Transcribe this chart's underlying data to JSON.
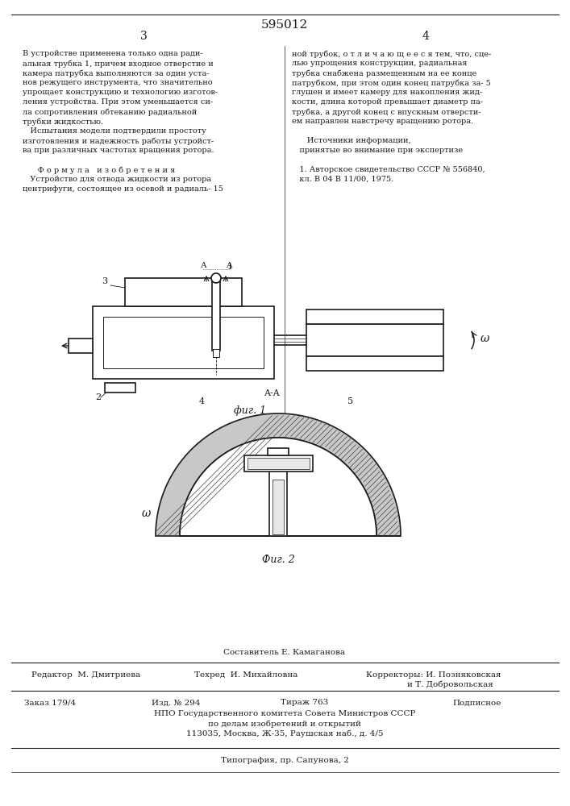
{
  "title": "595012",
  "page_numbers": [
    "3",
    "4"
  ],
  "fig1_caption": "фиг. 1",
  "fig2_caption": "Фиг. 2",
  "left_lines": [
    "В устройстве применена только одна ради-",
    "альная трубка 1, причем входное отверстие и",
    "камера патрубка выполняются за один уста-",
    "нов режущего инструмента, что значительно",
    "упрощает конструкцию и технологию изготов-",
    "ления устройства. При этом уменьшается си-",
    "ла сопротивления обтеканию радиальной",
    "трубки жидкостью.",
    "   Испытания модели подтвердили простоту",
    "изготовления и надежность работы устройст-",
    "ва при различных частотах вращения ротора.",
    "",
    "      Ф о р м у л а   и з о б р е т е н и я",
    "   Устройство для отвода жидкости из ротора",
    "центрифуги, состоящее из осевой и радиаль- 15"
  ],
  "right_lines": [
    "ной трубок, о т л и ч а ю щ е е с я тем, что, сце-",
    "лью упрощения конструкции, радиальная",
    "трубка снабжена размещенным на ее конце",
    "патрубком, при этом один конец патрубка за- 5",
    "глушен и имеет камеру для накопления жид-",
    "кости, длина которой превышает диаметр па-",
    "трубка, а другой конец с впускным отверсти-",
    "ем направлен навстречу вращению ротора.",
    "",
    "      Источники информации,",
    "   принятые во внимание при экспертизе",
    "",
    "   1. Авторское свидетельство СССР № 556840,",
    "   кл. В 04 В 11/00, 1975."
  ],
  "bottom": {
    "composer": "Составитель Е. Камаганова",
    "editor": "Редактор  М. Дмитриева",
    "techred": "Техред  И. Михайловна",
    "correctors": "Корректоры: И. Позняковская",
    "correctors2": "и Т. Добровольская",
    "order": "Заказ 179/4",
    "izd": "Изд. № 294",
    "tirazh": "Тираж 763",
    "podpisnoe": "Подписное",
    "npo": "НПО Государственного комитета Совета Министров СССР",
    "po_delam": "по делам изобретений и открытий",
    "address": "113035, Москва, Ж-35, Раушская наб., д. 4/5",
    "tipografia": "Типография, пр. Сапунова, 2"
  }
}
